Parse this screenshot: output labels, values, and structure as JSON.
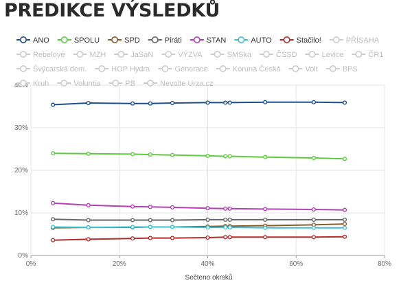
{
  "page": {
    "title": "PREDIKCE VÝSLEDKŮ"
  },
  "chart_data": {
    "type": "line",
    "title": "PREDIKCE VÝSLEDKŮ",
    "xlabel": "Sečteno okrsků",
    "ylabel": "",
    "xlim": [
      0,
      80
    ],
    "ylim": [
      0,
      40
    ],
    "x_ticks": [
      "0%",
      "20%",
      "40%",
      "60%",
      "80%"
    ],
    "y_ticks": [
      "0%",
      "10%",
      "20%",
      "30%",
      "40%"
    ],
    "grid": true,
    "legend_position": "top",
    "x": [
      5,
      13,
      23,
      27,
      32,
      40,
      44,
      45,
      53,
      64,
      71
    ],
    "series": [
      {
        "name": "ANO",
        "color": "#1f4e8c",
        "visible": true,
        "values": [
          35.4,
          35.8,
          35.7,
          35.7,
          35.8,
          35.9,
          35.9,
          35.9,
          36.0,
          36.0,
          35.9
        ]
      },
      {
        "name": "SPOLU",
        "color": "#5ccc3c",
        "visible": true,
        "values": [
          24.0,
          23.9,
          23.8,
          23.7,
          23.6,
          23.4,
          23.3,
          23.3,
          23.1,
          22.9,
          22.7
        ]
      },
      {
        "name": "SPD",
        "color": "#8b5a2b",
        "visible": true,
        "values": [
          6.5,
          6.6,
          6.6,
          6.7,
          6.7,
          6.8,
          6.9,
          6.9,
          7.0,
          7.2,
          7.4
        ]
      },
      {
        "name": "Piráti",
        "color": "#666666",
        "visible": true,
        "values": [
          8.5,
          8.3,
          8.3,
          8.3,
          8.3,
          8.4,
          8.4,
          8.4,
          8.4,
          8.4,
          8.4
        ]
      },
      {
        "name": "STAN",
        "color": "#b53fb5",
        "visible": true,
        "values": [
          12.3,
          11.8,
          11.5,
          11.4,
          11.3,
          11.1,
          11.0,
          11.0,
          10.9,
          10.8,
          10.7
        ]
      },
      {
        "name": "AUTO",
        "color": "#3cc1d1",
        "visible": true,
        "values": [
          6.7,
          6.6,
          6.7,
          6.7,
          6.7,
          6.6,
          6.6,
          6.6,
          6.5,
          6.5,
          6.5
        ]
      },
      {
        "name": "Stačilo!",
        "color": "#b32d2d",
        "visible": true,
        "values": [
          3.6,
          3.8,
          4.0,
          4.1,
          4.1,
          4.2,
          4.3,
          4.3,
          4.3,
          4.3,
          4.4
        ]
      },
      {
        "name": "PŘÍSAHA",
        "visible": false
      },
      {
        "name": "Rebelové",
        "visible": false
      },
      {
        "name": "MZH",
        "visible": false
      },
      {
        "name": "JaSaN",
        "visible": false
      },
      {
        "name": "VÝZVA",
        "visible": false
      },
      {
        "name": "SMSka",
        "visible": false
      },
      {
        "name": "ČSSD",
        "visible": false
      },
      {
        "name": "Levice",
        "visible": false
      },
      {
        "name": "ČR1",
        "visible": false
      },
      {
        "name": "Švýcarská dem.",
        "visible": false
      },
      {
        "name": "HOP Hydra",
        "visible": false
      },
      {
        "name": "Generace",
        "visible": false
      },
      {
        "name": "Koruna Česká",
        "visible": false
      },
      {
        "name": "Volt",
        "visible": false
      },
      {
        "name": "BPS",
        "visible": false
      },
      {
        "name": "Kruh",
        "visible": false
      },
      {
        "name": "Voluntia",
        "visible": false
      },
      {
        "name": "PB",
        "visible": false
      },
      {
        "name": "Nevolte Urza.cz",
        "visible": false
      }
    ],
    "inactive_color": "#cccccc"
  }
}
